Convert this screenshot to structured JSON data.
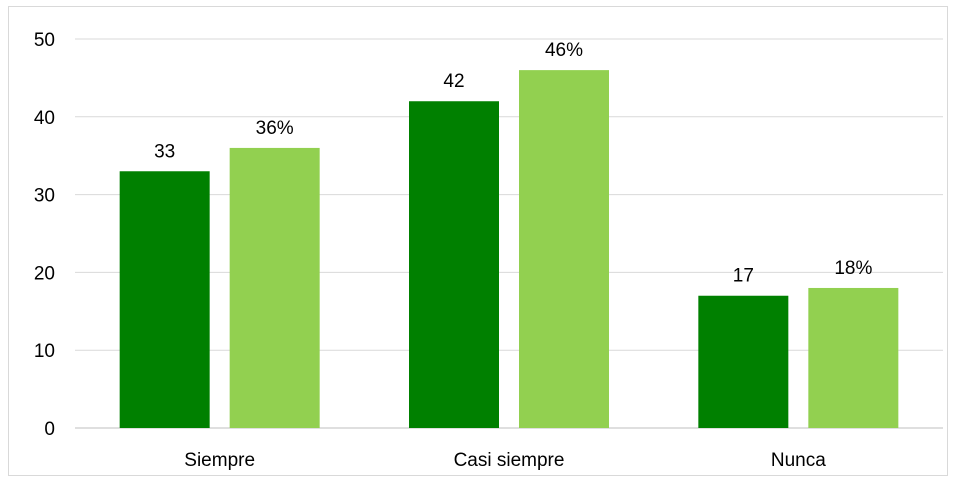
{
  "chart_data": {
    "type": "bar",
    "categories": [
      "Siempre",
      "Casi siempre",
      "Nunca"
    ],
    "series": [
      {
        "values": [
          33,
          42,
          17
        ],
        "labels": [
          "33",
          "42",
          "17"
        ],
        "color": "#008000"
      },
      {
        "values": [
          36,
          46,
          18
        ],
        "labels": [
          "36%",
          "46%",
          "18%"
        ],
        "color": "#92d050"
      }
    ],
    "ylim": [
      0,
      50
    ],
    "yticks": [
      0,
      10,
      20,
      30,
      40,
      50
    ],
    "ytick_labels": [
      "0",
      "10",
      "20",
      "30",
      "40",
      "50"
    ],
    "grid": true,
    "legend": "none",
    "title": "",
    "xlabel": "",
    "ylabel": ""
  }
}
